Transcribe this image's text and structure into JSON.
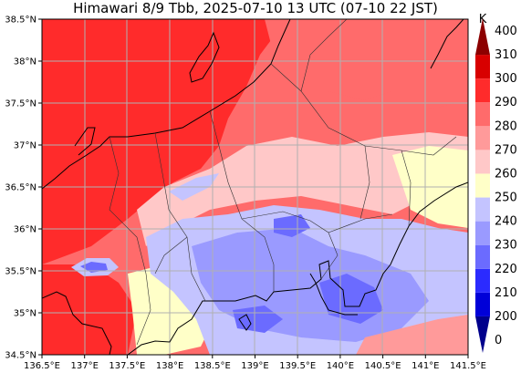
{
  "title": "Himawari 8/9 Tbb, 2025-07-10 13 UTC (07-10 22 JST)",
  "map": {
    "lon_range": [
      136.5,
      141.5
    ],
    "lat_range": [
      34.5,
      38.5
    ],
    "grid": true,
    "coastlines": true,
    "prefecture_borders": true
  },
  "axes": {
    "x_ticks": [
      "136.5°E",
      "137°E",
      "137.5°E",
      "138°E",
      "138.5°E",
      "139°E",
      "139.5°E",
      "140°E",
      "140.5°E",
      "141°E",
      "141.5°E"
    ],
    "y_ticks": [
      "34.5°N",
      "35°N",
      "35.5°N",
      "36°N",
      "36.5°N",
      "37°N",
      "37.5°N",
      "38°N",
      "38.5°N"
    ]
  },
  "colorbar": {
    "unit": "K",
    "labels": [
      "0",
      "200",
      "210",
      "220",
      "230",
      "240",
      "250",
      "260",
      "270",
      "280",
      "290",
      "300",
      "310",
      "400"
    ],
    "colors": [
      "#00008c",
      "#0000d8",
      "#2b2bff",
      "#6b6bff",
      "#9a9aff",
      "#c4c4ff",
      "#ffffc8",
      "#ffc8c8",
      "#ff9a9a",
      "#ff6b6b",
      "#ff2b2b",
      "#d80000",
      "#8c0000"
    ]
  },
  "chart_data": {
    "type": "heatmap",
    "title": "Himawari 8/9 Tbb, 2025-07-10 13 UTC (07-10 22 JST)",
    "x_range": [
      136.5,
      141.5
    ],
    "y_range": [
      34.5,
      38.5
    ],
    "levels": [
      0,
      200,
      210,
      220,
      230,
      240,
      250,
      260,
      270,
      280,
      290,
      300,
      310,
      400
    ],
    "unit": "K"
  }
}
